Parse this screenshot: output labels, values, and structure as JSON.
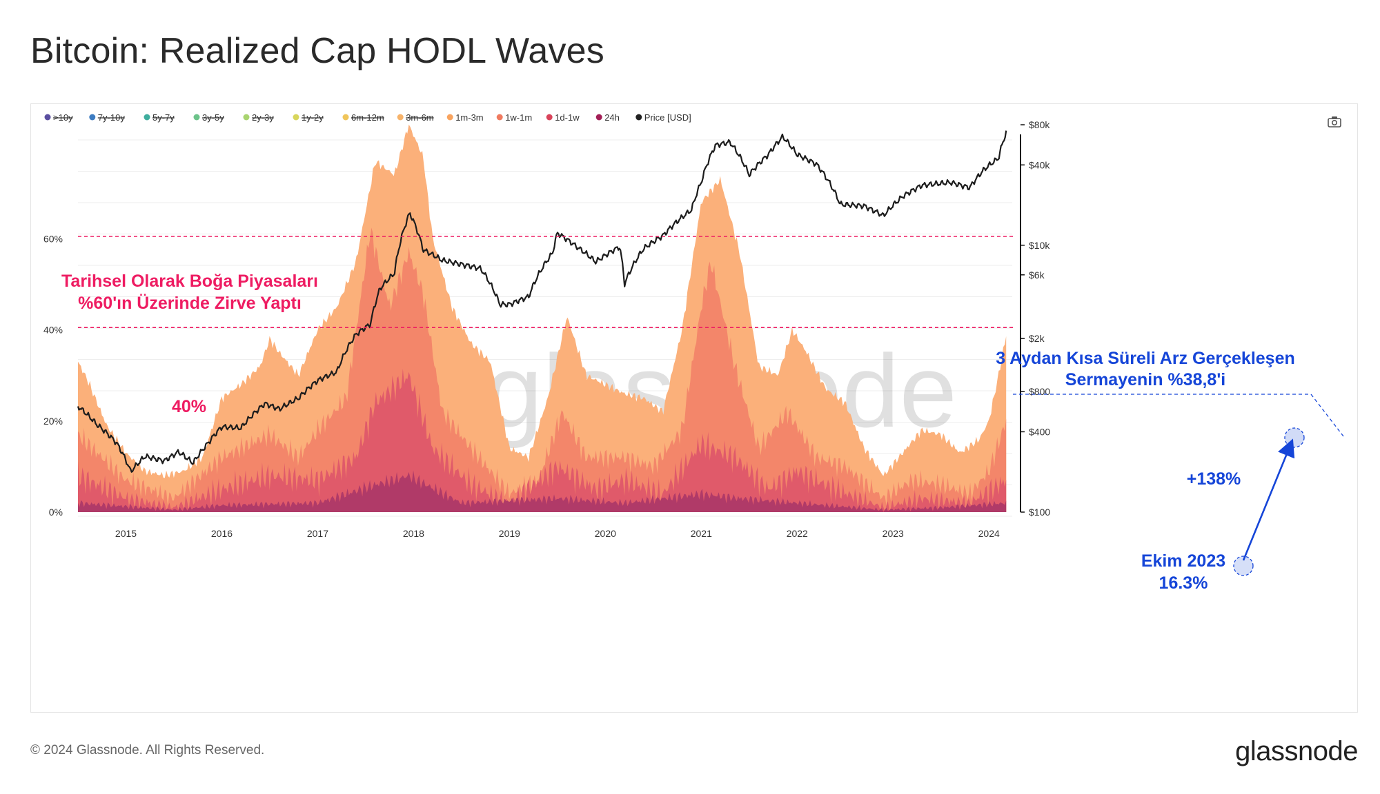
{
  "page": {
    "title": "Bitcoin: Realized Cap HODL Waves",
    "copyright": "© 2024 Glassnode. All Rights Reserved.",
    "brand": "glassnode",
    "watermark": "glassnode"
  },
  "legend": [
    {
      "label": ">10y",
      "color": "#5a4ea0",
      "disabled": true
    },
    {
      "label": "7y-10y",
      "color": "#3d7cc2",
      "disabled": true
    },
    {
      "label": "5y-7y",
      "color": "#3fae9e",
      "disabled": true
    },
    {
      "label": "3y-5y",
      "color": "#6cc38a",
      "disabled": true
    },
    {
      "label": "2y-3y",
      "color": "#a9d46f",
      "disabled": true
    },
    {
      "label": "1y-2y",
      "color": "#d8d65c",
      "disabled": true
    },
    {
      "label": "6m-12m",
      "color": "#f0c55a",
      "disabled": true
    },
    {
      "label": "3m-6m",
      "color": "#f7b36a",
      "disabled": true
    },
    {
      "label": "1m-3m",
      "color": "#f9a45f",
      "disabled": false
    },
    {
      "label": "1w-1m",
      "color": "#f07a5f",
      "disabled": false
    },
    {
      "label": "1d-1w",
      "color": "#d9435a",
      "disabled": false
    },
    {
      "label": "24h",
      "color": "#a31f56",
      "disabled": false
    },
    {
      "label": "Price [USD]",
      "color": "#222222",
      "disabled": false
    }
  ],
  "chart_data": {
    "type": "area",
    "title": "Bitcoin: Realized Cap HODL Waves",
    "x_ticks": [
      "2015",
      "2016",
      "2017",
      "2018",
      "2019",
      "2020",
      "2021",
      "2022",
      "2023",
      "2024"
    ],
    "left_axis": {
      "ticks": [
        "0%",
        "20%",
        "40%",
        "60%"
      ],
      "range": [
        0,
        85
      ]
    },
    "right_axis": {
      "ticks": [
        "$100",
        "$400",
        "$800",
        "$2k",
        "$6k",
        "$10k",
        "$40k",
        "$80k"
      ],
      "scale": "log",
      "range": [
        100,
        80000
      ]
    },
    "x_range": [
      2014.5,
      2024.2
    ],
    "series": [
      {
        "name": "1m-3m (stacked top)",
        "points": [
          [
            2014.5,
            33
          ],
          [
            2014.6,
            29
          ],
          [
            2014.8,
            19
          ],
          [
            2015.0,
            13
          ],
          [
            2015.2,
            9
          ],
          [
            2015.4,
            8
          ],
          [
            2015.6,
            9
          ],
          [
            2015.8,
            12
          ],
          [
            2016.0,
            25
          ],
          [
            2016.2,
            28
          ],
          [
            2016.4,
            32
          ],
          [
            2016.5,
            38
          ],
          [
            2016.6,
            35
          ],
          [
            2016.8,
            30
          ],
          [
            2017.0,
            40
          ],
          [
            2017.2,
            45
          ],
          [
            2017.4,
            55
          ],
          [
            2017.6,
            77
          ],
          [
            2017.8,
            74
          ],
          [
            2017.95,
            85
          ],
          [
            2018.1,
            78
          ],
          [
            2018.2,
            60
          ],
          [
            2018.4,
            45
          ],
          [
            2018.6,
            37
          ],
          [
            2018.8,
            33
          ],
          [
            2019.0,
            14
          ],
          [
            2019.2,
            12
          ],
          [
            2019.4,
            25
          ],
          [
            2019.6,
            43
          ],
          [
            2019.8,
            30
          ],
          [
            2020.0,
            28
          ],
          [
            2020.2,
            26
          ],
          [
            2020.4,
            25
          ],
          [
            2020.6,
            22
          ],
          [
            2020.8,
            40
          ],
          [
            2021.0,
            68
          ],
          [
            2021.2,
            73
          ],
          [
            2021.4,
            57
          ],
          [
            2021.6,
            32
          ],
          [
            2021.8,
            30
          ],
          [
            2021.95,
            40
          ],
          [
            2022.1,
            35
          ],
          [
            2022.3,
            27
          ],
          [
            2022.5,
            24
          ],
          [
            2022.7,
            14
          ],
          [
            2022.9,
            8
          ],
          [
            2023.1,
            13
          ],
          [
            2023.3,
            18
          ],
          [
            2023.5,
            17
          ],
          [
            2023.7,
            13
          ],
          [
            2023.9,
            16
          ],
          [
            2024.0,
            20
          ],
          [
            2024.1,
            30
          ],
          [
            2024.18,
            38.8
          ]
        ]
      },
      {
        "name": "1w-1m (stacked top)",
        "points": [
          [
            2014.5,
            17
          ],
          [
            2015.0,
            7
          ],
          [
            2015.5,
            3
          ],
          [
            2016.0,
            12
          ],
          [
            2016.5,
            17
          ],
          [
            2016.8,
            12
          ],
          [
            2017.0,
            18
          ],
          [
            2017.3,
            25
          ],
          [
            2017.55,
            62
          ],
          [
            2017.75,
            45
          ],
          [
            2017.95,
            57
          ],
          [
            2018.1,
            48
          ],
          [
            2018.3,
            22
          ],
          [
            2018.6,
            14
          ],
          [
            2019.0,
            4
          ],
          [
            2019.3,
            7
          ],
          [
            2019.55,
            22
          ],
          [
            2019.8,
            12
          ],
          [
            2020.2,
            12
          ],
          [
            2020.5,
            10
          ],
          [
            2020.8,
            18
          ],
          [
            2021.0,
            45
          ],
          [
            2021.1,
            55
          ],
          [
            2021.35,
            32
          ],
          [
            2021.6,
            14
          ],
          [
            2021.9,
            22
          ],
          [
            2022.2,
            12
          ],
          [
            2022.5,
            10
          ],
          [
            2022.9,
            3
          ],
          [
            2023.2,
            7
          ],
          [
            2023.5,
            6
          ],
          [
            2023.8,
            4
          ],
          [
            2024.0,
            9
          ],
          [
            2024.18,
            20
          ]
        ]
      },
      {
        "name": "1d-1w (stacked top)",
        "points": [
          [
            2014.5,
            8
          ],
          [
            2015.0,
            3
          ],
          [
            2015.5,
            1
          ],
          [
            2016.0,
            5
          ],
          [
            2016.5,
            8
          ],
          [
            2017.0,
            7
          ],
          [
            2017.4,
            12
          ],
          [
            2017.6,
            24
          ],
          [
            2017.95,
            30
          ],
          [
            2018.2,
            14
          ],
          [
            2018.6,
            6
          ],
          [
            2019.0,
            2
          ],
          [
            2019.5,
            10
          ],
          [
            2019.9,
            5
          ],
          [
            2020.2,
            7
          ],
          [
            2020.6,
            4
          ],
          [
            2021.0,
            15
          ],
          [
            2021.35,
            12
          ],
          [
            2021.7,
            5
          ],
          [
            2022.0,
            9
          ],
          [
            2022.4,
            5
          ],
          [
            2022.9,
            1
          ],
          [
            2023.3,
            3
          ],
          [
            2023.8,
            2
          ],
          [
            2024.18,
            7
          ]
        ]
      },
      {
        "name": "24h (stacked top)",
        "points": [
          [
            2014.5,
            2
          ],
          [
            2015.5,
            0.5
          ],
          [
            2016.0,
            1.5
          ],
          [
            2017.0,
            2
          ],
          [
            2017.6,
            6
          ],
          [
            2017.95,
            8
          ],
          [
            2018.5,
            2
          ],
          [
            2019.5,
            3
          ],
          [
            2020.2,
            2
          ],
          [
            2021.0,
            4
          ],
          [
            2021.4,
            3
          ],
          [
            2022.0,
            2
          ],
          [
            2022.9,
            0.5
          ],
          [
            2023.5,
            1
          ],
          [
            2024.18,
            2
          ]
        ]
      },
      {
        "name": "Price [USD]",
        "points": [
          [
            2014.5,
            620
          ],
          [
            2014.7,
            450
          ],
          [
            2014.9,
            330
          ],
          [
            2015.05,
            200
          ],
          [
            2015.2,
            260
          ],
          [
            2015.4,
            240
          ],
          [
            2015.55,
            280
          ],
          [
            2015.7,
            230
          ],
          [
            2015.85,
            320
          ],
          [
            2016.0,
            430
          ],
          [
            2016.2,
            420
          ],
          [
            2016.45,
            640
          ],
          [
            2016.6,
            580
          ],
          [
            2016.8,
            700
          ],
          [
            2017.0,
            950
          ],
          [
            2017.2,
            1100
          ],
          [
            2017.4,
            2100
          ],
          [
            2017.55,
            2500
          ],
          [
            2017.65,
            4600
          ],
          [
            2017.8,
            6000
          ],
          [
            2017.96,
            17000
          ],
          [
            2018.1,
            9000
          ],
          [
            2018.3,
            7500
          ],
          [
            2018.5,
            7000
          ],
          [
            2018.7,
            6500
          ],
          [
            2018.9,
            3500
          ],
          [
            2019.0,
            3500
          ],
          [
            2019.2,
            4000
          ],
          [
            2019.45,
            8500
          ],
          [
            2019.5,
            12000
          ],
          [
            2019.7,
            9500
          ],
          [
            2019.9,
            7300
          ],
          [
            2020.15,
            9500
          ],
          [
            2020.2,
            5000
          ],
          [
            2020.4,
            9200
          ],
          [
            2020.6,
            11500
          ],
          [
            2020.9,
            18000
          ],
          [
            2021.0,
            29000
          ],
          [
            2021.15,
            55000
          ],
          [
            2021.3,
            58000
          ],
          [
            2021.5,
            33000
          ],
          [
            2021.7,
            47000
          ],
          [
            2021.85,
            64000
          ],
          [
            2022.0,
            47000
          ],
          [
            2022.2,
            40000
          ],
          [
            2022.45,
            20000
          ],
          [
            2022.7,
            19500
          ],
          [
            2022.9,
            16500
          ],
          [
            2023.1,
            23000
          ],
          [
            2023.3,
            28000
          ],
          [
            2023.6,
            29500
          ],
          [
            2023.8,
            27000
          ],
          [
            2023.95,
            37000
          ],
          [
            2024.1,
            45000
          ],
          [
            2024.18,
            70000
          ]
        ]
      }
    ],
    "reference_lines": [
      {
        "label": "60%",
        "value": 60.5,
        "axis": "left"
      },
      {
        "label": "40%",
        "value": 40.5,
        "axis": "left"
      }
    ]
  },
  "annotations": {
    "bull_peaks": "Tarihsel Olarak Boğa Piyasaları\n%60'ın Üzerinde Zirve Yaptı",
    "level_40": "40%",
    "short_term_supply": "3 Aydan Kısa Süreli Arz Gerçekleşen\nSermayenin %38,8'i",
    "growth": "+138%",
    "oct_2023": "Ekim 2023\n16.3%"
  },
  "colors": {
    "band_1m3m": "#fbb07a",
    "band_1w1m": "#f3866a",
    "band_1d1w": "#e05a6a",
    "band_24h": "#b03a68",
    "price": "#1c1c1c",
    "pink": "#ee1c62",
    "blue": "#1545d8"
  }
}
